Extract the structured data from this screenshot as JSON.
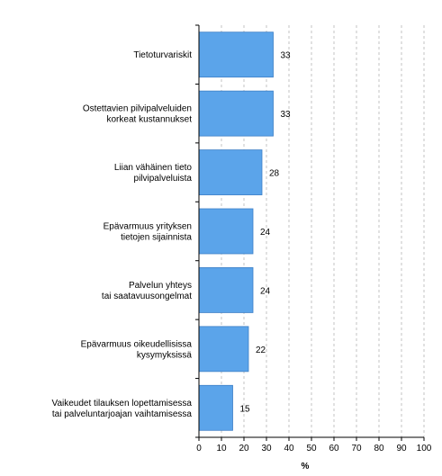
{
  "chart_data": {
    "type": "bar",
    "orientation": "horizontal",
    "categories": [
      [
        "Tietoturvariskit"
      ],
      [
        "Ostettavien pilvipalveluiden",
        "korkeat kustannukset"
      ],
      [
        "Liian vähäinen tieto",
        "pilvipalveluista"
      ],
      [
        "Epävarmuus yrityksen",
        "tietojen sijainnista"
      ],
      [
        "Palvelun yhteys",
        "tai saatavuusongelmat"
      ],
      [
        "Epävarmuus oikeudellisissa",
        "kysymyksissä"
      ],
      [
        "Vaikeudet tilauksen lopettamisessa",
        "tai palveluntarjoajan vaihtamisessa"
      ]
    ],
    "values": [
      33,
      33,
      28,
      24,
      24,
      22,
      15
    ],
    "data_labels": [
      "33",
      "33",
      "28",
      "24",
      "24",
      "22",
      "15"
    ],
    "xlim": [
      0,
      100
    ],
    "xticks": [
      0,
      10,
      20,
      30,
      40,
      50,
      60,
      70,
      80,
      90,
      100
    ],
    "xlabel": "%",
    "title": "",
    "grid": "vertical-dashed",
    "bar_color": "#5ba4ea",
    "bar_edge_color": "#3d7fc6"
  }
}
